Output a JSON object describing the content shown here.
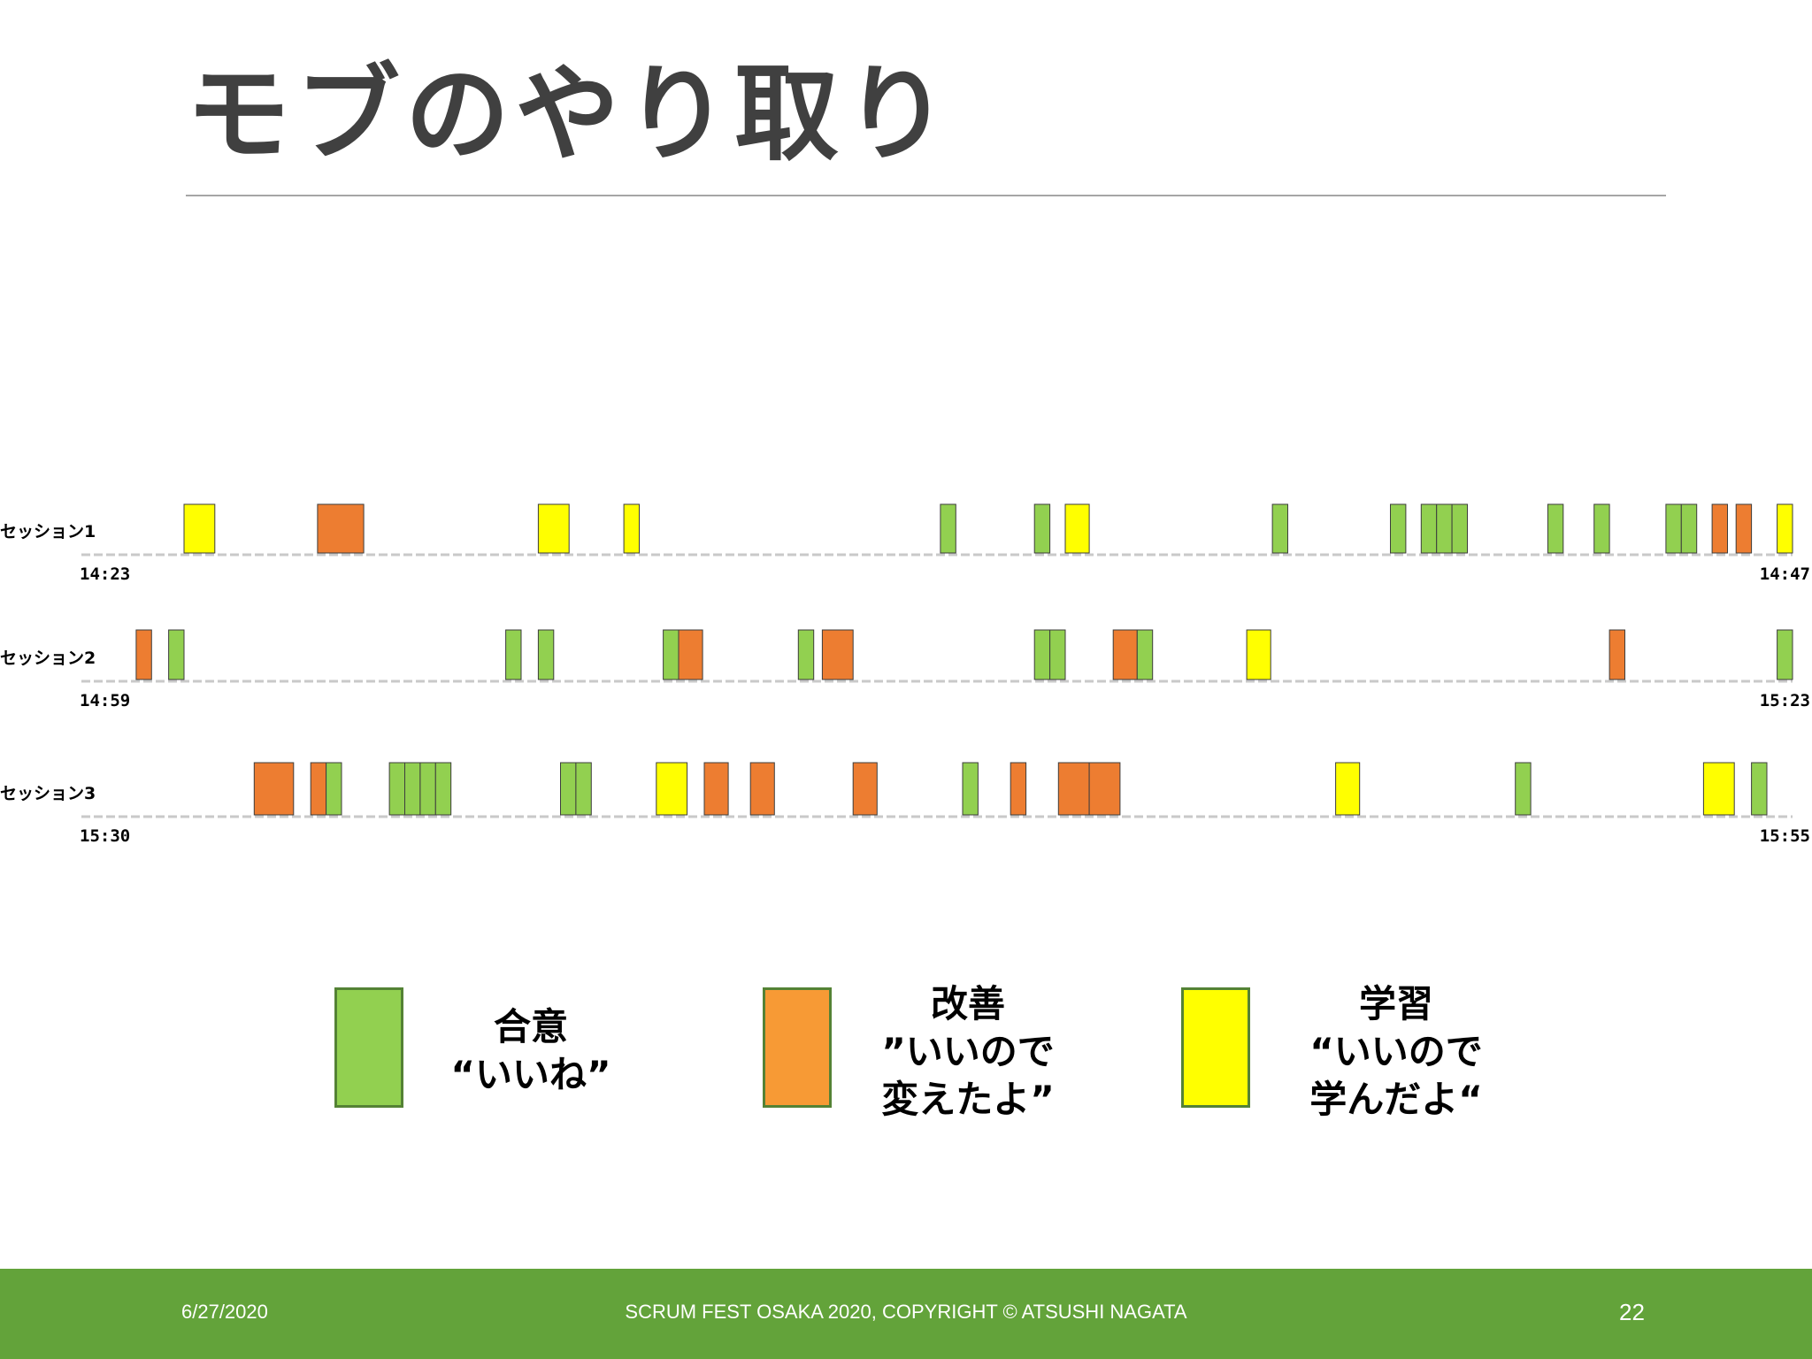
{
  "title": "モブのやり取り",
  "colors": {
    "agree": "#92d050",
    "improve": "#ed7d31",
    "learn": "#ffff00",
    "improve_legend": "#f79a35"
  },
  "legend": [
    {
      "key": "agree",
      "label": "合意\n“いいね”"
    },
    {
      "key": "improve",
      "label": "改善\n”いいので\n変えたよ”"
    },
    {
      "key": "learn",
      "label": "学習\n“いいので\n学んだよ“"
    }
  ],
  "chart_data": {
    "type": "bar",
    "x_unit": "elapsed fraction of session",
    "series": [
      {
        "name": "セッション1",
        "start": "14:23",
        "end": "14:47",
        "events": [
          {
            "t": 0.06,
            "w": 0.018,
            "cat": "learn"
          },
          {
            "t": 0.138,
            "w": 0.027,
            "cat": "improve"
          },
          {
            "t": 0.267,
            "w": 0.018,
            "cat": "learn"
          },
          {
            "t": 0.317,
            "w": 0.009,
            "cat": "learn"
          },
          {
            "t": 0.502,
            "w": 0.009,
            "cat": "agree"
          },
          {
            "t": 0.557,
            "w": 0.009,
            "cat": "agree"
          },
          {
            "t": 0.575,
            "w": 0.014,
            "cat": "learn"
          },
          {
            "t": 0.696,
            "w": 0.009,
            "cat": "agree"
          },
          {
            "t": 0.765,
            "w": 0.009,
            "cat": "agree"
          },
          {
            "t": 0.783,
            "w": 0.009,
            "cat": "agree"
          },
          {
            "t": 0.792,
            "w": 0.009,
            "cat": "agree"
          },
          {
            "t": 0.801,
            "w": 0.009,
            "cat": "agree"
          },
          {
            "t": 0.857,
            "w": 0.009,
            "cat": "agree"
          },
          {
            "t": 0.884,
            "w": 0.009,
            "cat": "agree"
          },
          {
            "t": 0.926,
            "w": 0.009,
            "cat": "agree"
          },
          {
            "t": 0.935,
            "w": 0.009,
            "cat": "agree"
          },
          {
            "t": 0.953,
            "w": 0.009,
            "cat": "improve"
          },
          {
            "t": 0.967,
            "w": 0.009,
            "cat": "improve"
          },
          {
            "t": 0.991,
            "w": 0.009,
            "cat": "learn"
          }
        ]
      },
      {
        "name": "セッション2",
        "start": "14:59",
        "end": "15:23",
        "events": [
          {
            "t": 0.032,
            "w": 0.009,
            "cat": "improve"
          },
          {
            "t": 0.051,
            "w": 0.009,
            "cat": "agree"
          },
          {
            "t": 0.248,
            "w": 0.009,
            "cat": "agree"
          },
          {
            "t": 0.267,
            "w": 0.009,
            "cat": "agree"
          },
          {
            "t": 0.34,
            "w": 0.009,
            "cat": "agree"
          },
          {
            "t": 0.349,
            "w": 0.014,
            "cat": "improve"
          },
          {
            "t": 0.419,
            "w": 0.009,
            "cat": "agree"
          },
          {
            "t": 0.433,
            "w": 0.018,
            "cat": "improve"
          },
          {
            "t": 0.557,
            "w": 0.009,
            "cat": "agree"
          },
          {
            "t": 0.566,
            "w": 0.009,
            "cat": "agree"
          },
          {
            "t": 0.603,
            "w": 0.014,
            "cat": "improve"
          },
          {
            "t": 0.617,
            "w": 0.009,
            "cat": "agree"
          },
          {
            "t": 0.681,
            "w": 0.014,
            "cat": "learn"
          },
          {
            "t": 0.893,
            "w": 0.009,
            "cat": "improve"
          },
          {
            "t": 0.991,
            "w": 0.009,
            "cat": "agree"
          }
        ]
      },
      {
        "name": "セッション3",
        "start": "15:30",
        "end": "15:55",
        "events": [
          {
            "t": 0.101,
            "w": 0.023,
            "cat": "improve"
          },
          {
            "t": 0.134,
            "w": 0.009,
            "cat": "improve"
          },
          {
            "t": 0.143,
            "w": 0.009,
            "cat": "agree"
          },
          {
            "t": 0.18,
            "w": 0.009,
            "cat": "agree"
          },
          {
            "t": 0.189,
            "w": 0.009,
            "cat": "agree"
          },
          {
            "t": 0.198,
            "w": 0.009,
            "cat": "agree"
          },
          {
            "t": 0.207,
            "w": 0.009,
            "cat": "agree"
          },
          {
            "t": 0.28,
            "w": 0.009,
            "cat": "agree"
          },
          {
            "t": 0.289,
            "w": 0.009,
            "cat": "agree"
          },
          {
            "t": 0.336,
            "w": 0.018,
            "cat": "learn"
          },
          {
            "t": 0.364,
            "w": 0.014,
            "cat": "improve"
          },
          {
            "t": 0.391,
            "w": 0.014,
            "cat": "improve"
          },
          {
            "t": 0.451,
            "w": 0.014,
            "cat": "improve"
          },
          {
            "t": 0.515,
            "w": 0.009,
            "cat": "agree"
          },
          {
            "t": 0.543,
            "w": 0.009,
            "cat": "improve"
          },
          {
            "t": 0.571,
            "w": 0.018,
            "cat": "improve"
          },
          {
            "t": 0.589,
            "w": 0.018,
            "cat": "improve"
          },
          {
            "t": 0.733,
            "w": 0.014,
            "cat": "learn"
          },
          {
            "t": 0.838,
            "w": 0.009,
            "cat": "agree"
          },
          {
            "t": 0.948,
            "w": 0.018,
            "cat": "learn"
          },
          {
            "t": 0.976,
            "w": 0.009,
            "cat": "agree"
          }
        ]
      }
    ]
  },
  "footer": {
    "date": "6/27/2020",
    "copyright": "SCRUM FEST OSAKA 2020, COPYRIGHT © ATSUSHI NAGATA",
    "page": "22"
  }
}
